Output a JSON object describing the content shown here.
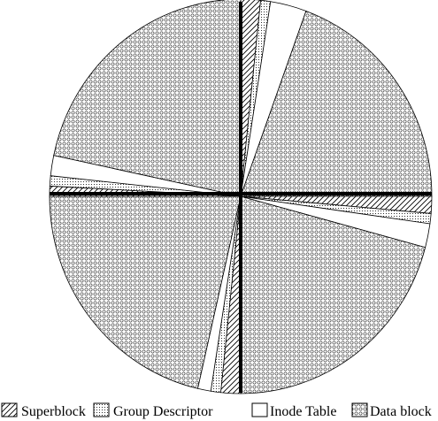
{
  "chart_data": {
    "type": "pie",
    "title": "",
    "legend": {
      "placement": "bottom",
      "entries": [
        {
          "name": "Superblock",
          "pattern": "diagonal-hatch"
        },
        {
          "name": "Group Descriptor",
          "pattern": "dots"
        },
        {
          "name": "Inode Table",
          "pattern": "white"
        },
        {
          "name": "Data block",
          "pattern": "circles"
        }
      ]
    },
    "quadrants": [
      {
        "name": "top-right",
        "slices": [
          {
            "category": "Superblock",
            "start_deg": 0,
            "end_deg": 6
          },
          {
            "category": "Group Descriptor",
            "start_deg": 6,
            "end_deg": 9
          },
          {
            "category": "Inode Table",
            "start_deg": 9,
            "end_deg": 20
          },
          {
            "category": "Data block",
            "start_deg": 20,
            "end_deg": 90
          }
        ]
      },
      {
        "name": "bottom-right",
        "slices": [
          {
            "category": "Superblock",
            "start_deg": 90,
            "end_deg": 95
          },
          {
            "category": "Group Descriptor",
            "start_deg": 95,
            "end_deg": 98
          },
          {
            "category": "Inode Table",
            "start_deg": 98,
            "end_deg": 105
          },
          {
            "category": "Data block",
            "start_deg": 105,
            "end_deg": 180
          }
        ]
      },
      {
        "name": "bottom-left",
        "slices": [
          {
            "category": "Superblock",
            "start_deg": 180,
            "end_deg": 186
          },
          {
            "category": "Group Descriptor",
            "start_deg": 186,
            "end_deg": 189
          },
          {
            "category": "Inode Table",
            "start_deg": 189,
            "end_deg": 193
          },
          {
            "category": "Data block",
            "start_deg": 193,
            "end_deg": 270
          }
        ]
      },
      {
        "name": "top-left",
        "slices": [
          {
            "category": "Superblock",
            "start_deg": 270,
            "end_deg": 273
          },
          {
            "category": "Group Descriptor",
            "start_deg": 273,
            "end_deg": 276
          },
          {
            "category": "Inode Table",
            "start_deg": 276,
            "end_deg": 282
          },
          {
            "category": "Data block",
            "start_deg": 282,
            "end_deg": 360
          }
        ]
      }
    ]
  },
  "colors": {
    "stroke": "#000000",
    "background": "#ffffff"
  }
}
